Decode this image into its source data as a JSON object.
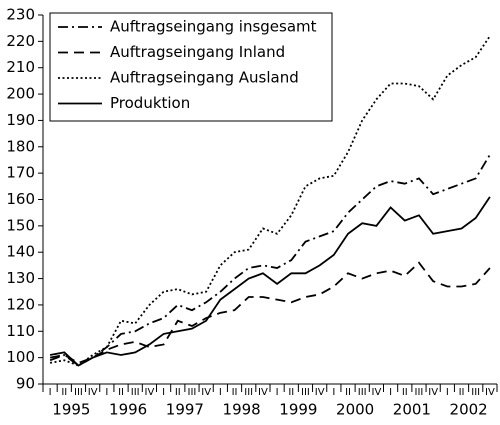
{
  "chart_data": {
    "type": "line",
    "categories": [
      "I",
      "II",
      "III",
      "IV",
      "I",
      "II",
      "III",
      "IV",
      "I",
      "II",
      "III",
      "IV",
      "I",
      "II",
      "III",
      "IV",
      "I",
      "II",
      "III",
      "IV",
      "I",
      "II",
      "III",
      "IV",
      "I",
      "II",
      "III",
      "IV",
      "I",
      "II",
      "III",
      "IV"
    ],
    "years": [
      "1995",
      "1996",
      "1997",
      "1998",
      "1999",
      "2000",
      "2001",
      "2002"
    ],
    "ylim": [
      90,
      230
    ],
    "yticks": [
      90,
      100,
      110,
      120,
      130,
      140,
      150,
      160,
      170,
      180,
      190,
      200,
      210,
      220,
      230
    ],
    "legend": "upper left",
    "series": [
      {
        "name": "Auftragseingang insgesamt",
        "color": "#000000",
        "dash": "dashdot",
        "values": [
          99,
          101,
          97,
          100,
          104,
          109,
          110,
          113,
          115,
          120,
          118,
          121,
          125,
          130,
          134,
          135,
          134,
          137,
          144,
          146,
          148,
          155,
          160,
          165,
          167,
          166,
          168,
          162,
          164,
          166,
          168,
          177
        ]
      },
      {
        "name": "Auftragseingang Inland",
        "color": "#000000",
        "dash": "dashed",
        "values": [
          100,
          101,
          98,
          100,
          103,
          105,
          106,
          104,
          105,
          114,
          112,
          115,
          117,
          118,
          123,
          123,
          122,
          121,
          123,
          124,
          127,
          132,
          130,
          132,
          133,
          131,
          136,
          129,
          127,
          127,
          128,
          134
        ]
      },
      {
        "name": "Auftragseingang Ausland",
        "color": "#000000",
        "dash": "dotted",
        "values": [
          98,
          99,
          97,
          101,
          104,
          114,
          113,
          120,
          125,
          126,
          124,
          125,
          135,
          140,
          141,
          149,
          147,
          154,
          165,
          168,
          169,
          178,
          190,
          198,
          204,
          204,
          203,
          198,
          207,
          211,
          214,
          222
        ]
      },
      {
        "name": "Produktion",
        "color": "#000000",
        "dash": "solid",
        "values": [
          101,
          102,
          97,
          100,
          102,
          101,
          102,
          105,
          109,
          110,
          111,
          114,
          122,
          126,
          130,
          132,
          128,
          132,
          132,
          135,
          139,
          147,
          151,
          150,
          157,
          152,
          154,
          147,
          148,
          149,
          153,
          161
        ]
      }
    ]
  }
}
